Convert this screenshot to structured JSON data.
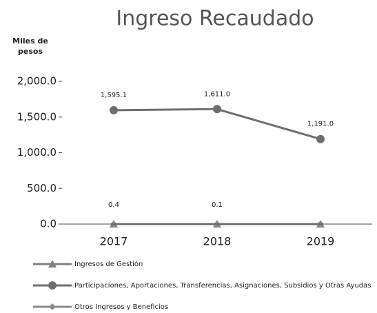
{
  "chart_data": {
    "type": "line",
    "title": "Ingreso Recaudado",
    "y_label": [
      "Miles de",
      "pesos"
    ],
    "categories": [
      "2017",
      "2018",
      "2019"
    ],
    "ylim": [
      0,
      2000
    ],
    "yticks": [
      {
        "value": 0,
        "label": "0.0"
      },
      {
        "value": 500,
        "label": "500.0"
      },
      {
        "value": 1000,
        "label": "1,000.0"
      },
      {
        "value": 1500,
        "label": "1,500.0"
      },
      {
        "value": 2000,
        "label": "2,000.0"
      }
    ],
    "grid": false,
    "series": [
      {
        "name": "Ingresos de Gestión",
        "color": "#808080",
        "marker": "triangle",
        "values": [
          0,
          0,
          0
        ]
      },
      {
        "name": "Participaciones, Aportaciones, Transferencias, Asignaciones, Subsidios y Otras Ayudas",
        "color": "#6e6e6e",
        "marker": "circle",
        "values": [
          1595.1,
          1611.0,
          1191.0
        ],
        "value_labels": [
          "1,595.1",
          "1,611.0",
          "1,191.0"
        ]
      },
      {
        "name": "Otros Ingresos y Beneficios",
        "color": "#8a8a8a",
        "marker": "diamond",
        "values": [
          0.4,
          0.1,
          0
        ],
        "value_labels": [
          "0.4",
          "0.1",
          null
        ]
      }
    ]
  }
}
